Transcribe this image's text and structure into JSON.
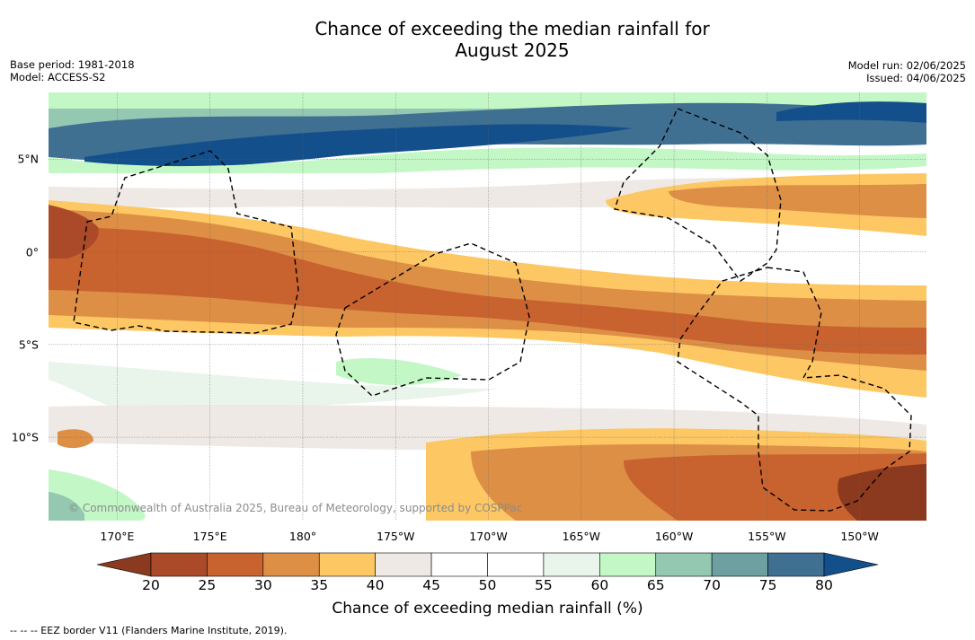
{
  "header": {
    "title_line1": "Chance of exceeding the median rainfall for",
    "title_line2": "August 2025",
    "base_period": "Base period: 1981-2018",
    "model": "Model: ACCESS-S2",
    "model_run": "Model run: 02/06/2025",
    "issued": "Issued: 04/06/2025"
  },
  "map": {
    "copyright": "© Commonwealth of Australia 2025, Bureau of Meteorology, supported by COSPPac",
    "lon_range_deg_east": [
      166.3,
      213.6
    ],
    "lat_range_deg": [
      -14.5,
      8.6
    ],
    "x_ticks": [
      {
        "label": "170°E",
        "lon": 170
      },
      {
        "label": "175°E",
        "lon": 175
      },
      {
        "label": "180°",
        "lon": 180
      },
      {
        "label": "175°W",
        "lon": 185
      },
      {
        "label": "170°W",
        "lon": 190
      },
      {
        "label": "165°W",
        "lon": 195
      },
      {
        "label": "160°W",
        "lon": 200
      },
      {
        "label": "155°W",
        "lon": 205
      },
      {
        "label": "150°W",
        "lon": 210
      }
    ],
    "y_ticks": [
      {
        "label": "5°N",
        "lat": 5
      },
      {
        "label": "0°",
        "lat": 0
      },
      {
        "label": "5°S",
        "lat": -5
      },
      {
        "label": "10°S",
        "lat": -10
      }
    ],
    "grid": true
  },
  "colorbar": {
    "label": "Chance of exceeding median rainfall (%)",
    "ticks": [
      "20",
      "25",
      "30",
      "35",
      "40",
      "45",
      "50",
      "55",
      "60",
      "65",
      "70",
      "75",
      "80"
    ],
    "colors": {
      "below_20": "#8b3a1f",
      "20_25": "#ab4a29",
      "25_30": "#c8632f",
      "30_35": "#dd8f45",
      "35_40": "#fdc764",
      "40_45": "#efe9e5",
      "45_50": "#ffffff",
      "50_55": "#ffffff",
      "55_60": "#e9f4ea",
      "60_65": "#c3f7c6",
      "65_70": "#94c8b1",
      "70_75": "#6e9fa1",
      "75_80": "#3f7092",
      "above_80": "#134f8b"
    }
  },
  "legend": {
    "eez_text": "--  --  -- EEZ border V11 (Flanders Marine Institute, 2019)."
  }
}
